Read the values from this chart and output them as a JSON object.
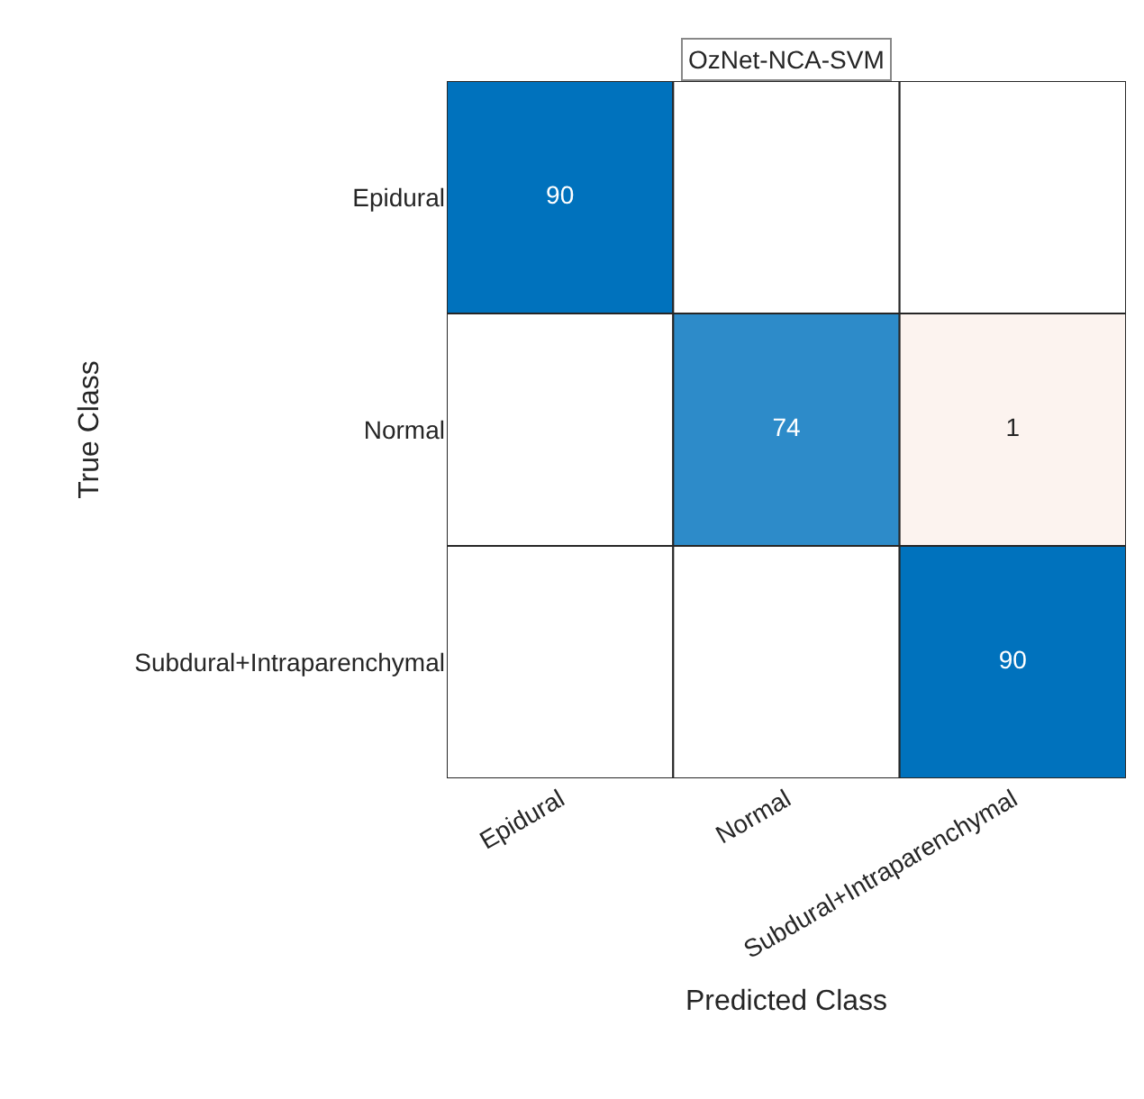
{
  "chart_data": {
    "type": "heatmap",
    "title": "OzNet-NCA-SVM",
    "xlabel": "Predicted Class",
    "ylabel": "True Class",
    "categories": [
      "Epidural",
      "Normal",
      "Subdural+Intraparenchymal"
    ],
    "y_categories": [
      "Epidural",
      "Normal",
      "Subdural+Intraparenchymal"
    ],
    "data_labels": true,
    "cells": [
      [
        90,
        null,
        null
      ],
      [
        null,
        74,
        1
      ],
      [
        null,
        null,
        90
      ]
    ]
  }
}
